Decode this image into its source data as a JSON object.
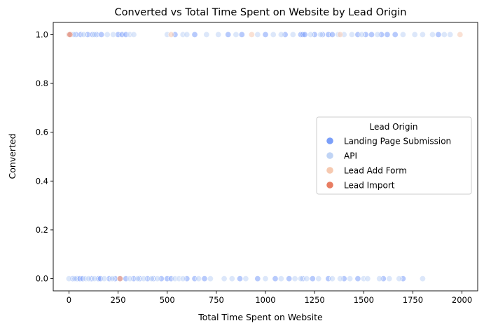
{
  "chart_data": {
    "type": "scatter",
    "title": "Converted vs Total Time Spent on Website by Lead Origin",
    "xlabel": "Total Time Spent on Website",
    "ylabel": "Converted",
    "xlim": [
      -80,
      2080
    ],
    "ylim": [
      -0.05,
      1.05
    ],
    "x_ticks": [
      0,
      250,
      500,
      750,
      1000,
      1250,
      1500,
      1750,
      2000
    ],
    "x_tick_labels": [
      "0",
      "250",
      "500",
      "750",
      "1000",
      "1250",
      "1500",
      "1750",
      "2000"
    ],
    "y_ticks": [
      0.0,
      0.2,
      0.4,
      0.6,
      0.8,
      1.0
    ],
    "y_tick_labels": [
      "0.0",
      "0.2",
      "0.4",
      "0.6",
      "0.8",
      "1.0"
    ],
    "grid": false,
    "legend_placement": "center-right",
    "legend_title": "Lead Origin",
    "series": [
      {
        "name": "Landing Page Submission",
        "color": "#7b9ff9",
        "points": [
          [
            10,
            1
          ],
          [
            35,
            1
          ],
          [
            60,
            1
          ],
          [
            95,
            1
          ],
          [
            120,
            1
          ],
          [
            140,
            1
          ],
          [
            165,
            1
          ],
          [
            250,
            1
          ],
          [
            270,
            1
          ],
          [
            290,
            1
          ],
          [
            540,
            1
          ],
          [
            640,
            1
          ],
          [
            810,
            1
          ],
          [
            880,
            1
          ],
          [
            1000,
            1
          ],
          [
            1100,
            1
          ],
          [
            1180,
            1
          ],
          [
            1190,
            1
          ],
          [
            1200,
            1
          ],
          [
            1250,
            1
          ],
          [
            1290,
            1
          ],
          [
            1320,
            1
          ],
          [
            1340,
            1
          ],
          [
            1470,
            1
          ],
          [
            1510,
            1
          ],
          [
            1540,
            1
          ],
          [
            1590,
            1
          ],
          [
            1620,
            1
          ],
          [
            1660,
            1
          ],
          [
            1880,
            1
          ],
          [
            20,
            0
          ],
          [
            40,
            0
          ],
          [
            55,
            0
          ],
          [
            70,
            0
          ],
          [
            115,
            0
          ],
          [
            150,
            0
          ],
          [
            160,
            0
          ],
          [
            205,
            0
          ],
          [
            235,
            0
          ],
          [
            290,
            0
          ],
          [
            330,
            0
          ],
          [
            360,
            0
          ],
          [
            400,
            0
          ],
          [
            430,
            0
          ],
          [
            470,
            0
          ],
          [
            500,
            0
          ],
          [
            520,
            0
          ],
          [
            600,
            0
          ],
          [
            640,
            0
          ],
          [
            690,
            0
          ],
          [
            870,
            0
          ],
          [
            960,
            0
          ],
          [
            1050,
            0
          ],
          [
            1120,
            0
          ],
          [
            1190,
            0
          ],
          [
            1240,
            0
          ],
          [
            1320,
            0
          ],
          [
            1400,
            0
          ],
          [
            1470,
            0
          ],
          [
            1600,
            0
          ],
          [
            1700,
            0
          ]
        ]
      },
      {
        "name": "API",
        "color": "#c0d4f5",
        "points": [
          [
            0,
            1
          ],
          [
            25,
            1
          ],
          [
            75,
            1
          ],
          [
            130,
            1
          ],
          [
            195,
            1
          ],
          [
            225,
            1
          ],
          [
            310,
            1
          ],
          [
            330,
            1
          ],
          [
            500,
            1
          ],
          [
            580,
            1
          ],
          [
            600,
            1
          ],
          [
            700,
            1
          ],
          [
            760,
            1
          ],
          [
            850,
            1
          ],
          [
            960,
            1
          ],
          [
            1040,
            1
          ],
          [
            1080,
            1
          ],
          [
            1140,
            1
          ],
          [
            1230,
            1
          ],
          [
            1280,
            1
          ],
          [
            1370,
            1
          ],
          [
            1400,
            1
          ],
          [
            1440,
            1
          ],
          [
            1490,
            1
          ],
          [
            1570,
            1
          ],
          [
            1700,
            1
          ],
          [
            1760,
            1
          ],
          [
            1800,
            1
          ],
          [
            1850,
            1
          ],
          [
            1910,
            1
          ],
          [
            1940,
            1
          ],
          [
            0,
            0
          ],
          [
            30,
            0
          ],
          [
            85,
            0
          ],
          [
            100,
            0
          ],
          [
            130,
            0
          ],
          [
            180,
            0
          ],
          [
            220,
            0
          ],
          [
            260,
            0
          ],
          [
            310,
            0
          ],
          [
            350,
            0
          ],
          [
            380,
            0
          ],
          [
            420,
            0
          ],
          [
            450,
            0
          ],
          [
            540,
            0
          ],
          [
            560,
            0
          ],
          [
            580,
            0
          ],
          [
            660,
            0
          ],
          [
            720,
            0
          ],
          [
            790,
            0
          ],
          [
            830,
            0
          ],
          [
            900,
            0
          ],
          [
            1000,
            0
          ],
          [
            1080,
            0
          ],
          [
            1150,
            0
          ],
          [
            1180,
            0
          ],
          [
            1210,
            0
          ],
          [
            1270,
            0
          ],
          [
            1340,
            0
          ],
          [
            1380,
            0
          ],
          [
            1430,
            0
          ],
          [
            1500,
            0
          ],
          [
            1520,
            0
          ],
          [
            1580,
            0
          ],
          [
            1630,
            0
          ],
          [
            1680,
            0
          ],
          [
            1800,
            0
          ]
        ]
      },
      {
        "name": "Lead Add Form",
        "color": "#f6c9b0",
        "points": [
          [
            0,
            1
          ],
          [
            520,
            1
          ],
          [
            930,
            1
          ],
          [
            1380,
            1
          ],
          [
            1990,
            1
          ]
        ]
      },
      {
        "name": "Lead Import",
        "color": "#e87d62",
        "points": [
          [
            5,
            1
          ],
          [
            260,
            0
          ]
        ]
      }
    ]
  }
}
